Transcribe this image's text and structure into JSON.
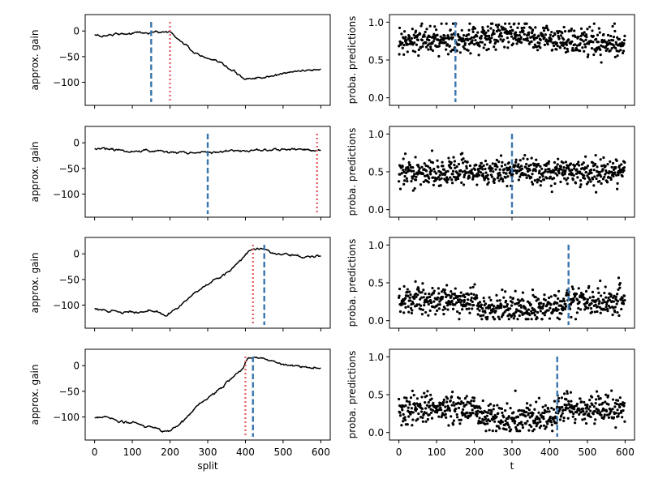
{
  "colors": {
    "line": "#000000",
    "vline_blue": "#3a75ae",
    "vline_red": "#e8616b",
    "points": "#000000"
  },
  "chart_data": [
    {
      "type": "line",
      "panel": "left-1",
      "xlabel": "",
      "ylabel": "approx. gain",
      "xlim": [
        -25,
        625
      ],
      "ylim": [
        -145,
        32
      ],
      "xticks": [
        0,
        100,
        200,
        300,
        400,
        500,
        600
      ],
      "yticks": [
        0,
        -50,
        -100
      ],
      "ytick_labels": [
        "0",
        "−50",
        "−100"
      ],
      "show_xticklabels": false,
      "series_points": [
        [
          0,
          -8
        ],
        [
          20,
          -10
        ],
        [
          40,
          -7
        ],
        [
          60,
          -4
        ],
        [
          80,
          -5
        ],
        [
          100,
          -4
        ],
        [
          120,
          -3
        ],
        [
          150,
          -4
        ],
        [
          180,
          -2
        ],
        [
          200,
          -1
        ],
        [
          215,
          -12
        ],
        [
          230,
          -20
        ],
        [
          260,
          -40
        ],
        [
          290,
          -52
        ],
        [
          320,
          -62
        ],
        [
          350,
          -72
        ],
        [
          380,
          -86
        ],
        [
          400,
          -93
        ],
        [
          420,
          -92
        ],
        [
          450,
          -91
        ],
        [
          470,
          -90
        ],
        [
          480,
          -88
        ],
        [
          500,
          -83
        ],
        [
          520,
          -80
        ],
        [
          540,
          -79
        ],
        [
          570,
          -76
        ],
        [
          600,
          -74
        ]
      ],
      "vlines": [
        {
          "x": 150,
          "color": "blue",
          "style": "dashed"
        },
        {
          "x": 200,
          "color": "red",
          "style": "dotted"
        }
      ]
    },
    {
      "type": "scatter",
      "panel": "right-1",
      "xlabel": "",
      "ylabel": "proba. predictions",
      "xlim": [
        -25,
        625
      ],
      "ylim": [
        -0.1,
        1.1
      ],
      "xticks": [
        0,
        100,
        200,
        300,
        400,
        500,
        600
      ],
      "yticks": [
        0.0,
        0.5,
        1.0
      ],
      "ytick_labels": [
        "0.0",
        "0.5",
        "1.0"
      ],
      "show_xticklabels": false,
      "points_description": "600 points, t=0..599",
      "mean_segments": [
        [
          0,
          0.75
        ],
        [
          150,
          0.76
        ],
        [
          300,
          0.84
        ],
        [
          450,
          0.74
        ],
        [
          599,
          0.72
        ]
      ],
      "spread": 0.09,
      "vlines": [
        {
          "x": 150,
          "color": "blue",
          "style": "dashed"
        }
      ]
    },
    {
      "type": "line",
      "panel": "left-2",
      "xlabel": "",
      "ylabel": "approx. gain",
      "xlim": [
        -25,
        625
      ],
      "ylim": [
        -145,
        32
      ],
      "xticks": [
        0,
        100,
        200,
        300,
        400,
        500,
        600
      ],
      "yticks": [
        0,
        -50,
        -100
      ],
      "ytick_labels": [
        "0",
        "−50",
        "−100"
      ],
      "show_xticklabels": false,
      "series_points": [
        [
          0,
          -12
        ],
        [
          50,
          -14
        ],
        [
          100,
          -17
        ],
        [
          150,
          -16
        ],
        [
          200,
          -18
        ],
        [
          250,
          -19
        ],
        [
          300,
          -20
        ],
        [
          330,
          -17
        ],
        [
          360,
          -15
        ],
        [
          400,
          -16
        ],
        [
          450,
          -14
        ],
        [
          500,
          -13
        ],
        [
          550,
          -13
        ],
        [
          590,
          -12
        ],
        [
          600,
          -14
        ]
      ],
      "vlines": [
        {
          "x": 300,
          "color": "blue",
          "style": "dashed"
        },
        {
          "x": 590,
          "color": "red",
          "style": "dotted"
        }
      ]
    },
    {
      "type": "scatter",
      "panel": "right-2",
      "xlabel": "",
      "ylabel": "proba. predictions",
      "xlim": [
        -25,
        625
      ],
      "ylim": [
        -0.1,
        1.1
      ],
      "xticks": [
        0,
        100,
        200,
        300,
        400,
        500,
        600
      ],
      "yticks": [
        0.0,
        0.5,
        1.0
      ],
      "ytick_labels": [
        "0.0",
        "0.5",
        "1.0"
      ],
      "show_xticklabels": false,
      "points_description": "600 points, t=0..599",
      "mean_segments": [
        [
          0,
          0.5
        ],
        [
          300,
          0.5
        ],
        [
          599,
          0.5
        ]
      ],
      "spread": 0.09,
      "vlines": [
        {
          "x": 300,
          "color": "blue",
          "style": "dashed"
        }
      ]
    },
    {
      "type": "line",
      "panel": "left-3",
      "xlabel": "",
      "ylabel": "approx. gain",
      "xlim": [
        -25,
        625
      ],
      "ylim": [
        -145,
        32
      ],
      "xticks": [
        0,
        100,
        200,
        300,
        400,
        500,
        600
      ],
      "yticks": [
        0,
        -50,
        -100
      ],
      "ytick_labels": [
        "0",
        "−50",
        "−100"
      ],
      "show_xticklabels": false,
      "series_points": [
        [
          0,
          -108
        ],
        [
          30,
          -112
        ],
        [
          80,
          -113
        ],
        [
          130,
          -114
        ],
        [
          160,
          -113
        ],
        [
          190,
          -120
        ],
        [
          200,
          -116
        ],
        [
          230,
          -100
        ],
        [
          260,
          -80
        ],
        [
          300,
          -58
        ],
        [
          330,
          -45
        ],
        [
          360,
          -32
        ],
        [
          380,
          -20
        ],
        [
          395,
          -8
        ],
        [
          410,
          8
        ],
        [
          425,
          10
        ],
        [
          440,
          11
        ],
        [
          450,
          9
        ],
        [
          470,
          2
        ],
        [
          500,
          -1
        ],
        [
          540,
          -4
        ],
        [
          570,
          -6
        ],
        [
          600,
          -6
        ]
      ],
      "vlines": [
        {
          "x": 420,
          "color": "red",
          "style": "dotted"
        },
        {
          "x": 450,
          "color": "blue",
          "style": "dashed"
        }
      ]
    },
    {
      "type": "scatter",
      "panel": "right-3",
      "xlabel": "",
      "ylabel": "proba. predictions",
      "xlim": [
        -25,
        625
      ],
      "ylim": [
        -0.1,
        1.1
      ],
      "xticks": [
        0,
        100,
        200,
        300,
        400,
        500,
        600
      ],
      "yticks": [
        0.0,
        0.5,
        1.0
      ],
      "ytick_labels": [
        "0.0",
        "0.5",
        "1.0"
      ],
      "show_xticklabels": false,
      "points_description": "600 points, t=0..599",
      "mean_segments": [
        [
          0,
          0.27
        ],
        [
          200,
          0.26
        ],
        [
          210,
          0.17
        ],
        [
          420,
          0.17
        ],
        [
          450,
          0.3
        ],
        [
          599,
          0.25
        ]
      ],
      "spread": 0.1,
      "vlines": [
        {
          "x": 450,
          "color": "blue",
          "style": "dashed"
        }
      ]
    },
    {
      "type": "line",
      "panel": "left-4",
      "xlabel": "split",
      "ylabel": "approx. gain",
      "xlim": [
        -25,
        625
      ],
      "ylim": [
        -145,
        32
      ],
      "xticks": [
        0,
        100,
        200,
        300,
        400,
        500,
        600
      ],
      "yticks": [
        0,
        -50,
        -100
      ],
      "ytick_labels": [
        "0",
        "−50",
        "−100"
      ],
      "show_xticklabels": true,
      "series_points": [
        [
          0,
          -102
        ],
        [
          30,
          -101
        ],
        [
          60,
          -108
        ],
        [
          100,
          -112
        ],
        [
          150,
          -120
        ],
        [
          180,
          -128
        ],
        [
          200,
          -128
        ],
        [
          220,
          -118
        ],
        [
          250,
          -95
        ],
        [
          290,
          -70
        ],
        [
          330,
          -45
        ],
        [
          370,
          -20
        ],
        [
          395,
          -2
        ],
        [
          405,
          12
        ],
        [
          420,
          15
        ],
        [
          440,
          14
        ],
        [
          460,
          9
        ],
        [
          490,
          3
        ],
        [
          520,
          -2
        ],
        [
          560,
          -6
        ],
        [
          600,
          -8
        ]
      ],
      "vlines": [
        {
          "x": 400,
          "color": "red",
          "style": "dotted"
        },
        {
          "x": 420,
          "color": "blue",
          "style": "dashed"
        }
      ]
    },
    {
      "type": "scatter",
      "panel": "right-4",
      "xlabel": "t",
      "ylabel": "proba. predictions",
      "xlim": [
        -25,
        625
      ],
      "ylim": [
        -0.1,
        1.1
      ],
      "xticks": [
        0,
        100,
        200,
        300,
        400,
        500,
        600
      ],
      "yticks": [
        0.0,
        0.5,
        1.0
      ],
      "ytick_labels": [
        "0.0",
        "0.5",
        "1.0"
      ],
      "show_xticklabels": true,
      "points_description": "600 points, t=0..599",
      "mean_segments": [
        [
          0,
          0.33
        ],
        [
          200,
          0.3
        ],
        [
          210,
          0.2
        ],
        [
          410,
          0.2
        ],
        [
          420,
          0.32
        ],
        [
          599,
          0.3
        ]
      ],
      "spread": 0.1,
      "vlines": [
        {
          "x": 420,
          "color": "blue",
          "style": "dashed"
        }
      ]
    }
  ]
}
